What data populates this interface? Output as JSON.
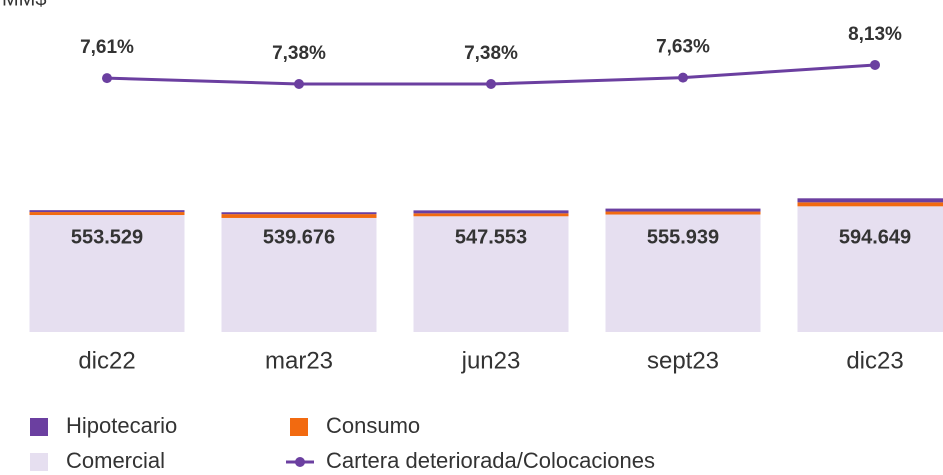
{
  "chart_data": {
    "type": "bar_line",
    "unit_label": "MM$",
    "categories": [
      "dic22",
      "mar23",
      "jun23",
      "sept23",
      "dic23"
    ],
    "ylim": [
      0,
      1500000
    ],
    "y2lim": [
      -2.4,
      10.1
    ],
    "series": [
      {
        "name": "Comercial",
        "color": "#e6dff0",
        "values": [
          553529,
          539676,
          547553,
          555939,
          594649
        ],
        "value_labels": [
          "553.529",
          "539.676",
          "547.553",
          "555.939",
          "594.649"
        ]
      },
      {
        "name": "Consumo",
        "color": "#f26a10",
        "values": [
          14000,
          18000,
          14000,
          14000,
          19000
        ]
      },
      {
        "name": "Hipotecario",
        "color": "#6b3fa0",
        "values": [
          9000,
          9000,
          14000,
          14000,
          19000
        ]
      },
      {
        "name": "Cartera deteriorada/Colocaciones",
        "type": "line",
        "axis": "y2",
        "color": "#6b3fa0",
        "values": [
          7.61,
          7.38,
          7.38,
          7.63,
          8.13
        ],
        "value_labels": [
          "7,61%",
          "7,38%",
          "7,38%",
          "7,63%",
          "8,13%"
        ]
      }
    ],
    "legend_order": [
      2,
      1,
      0,
      3
    ]
  }
}
